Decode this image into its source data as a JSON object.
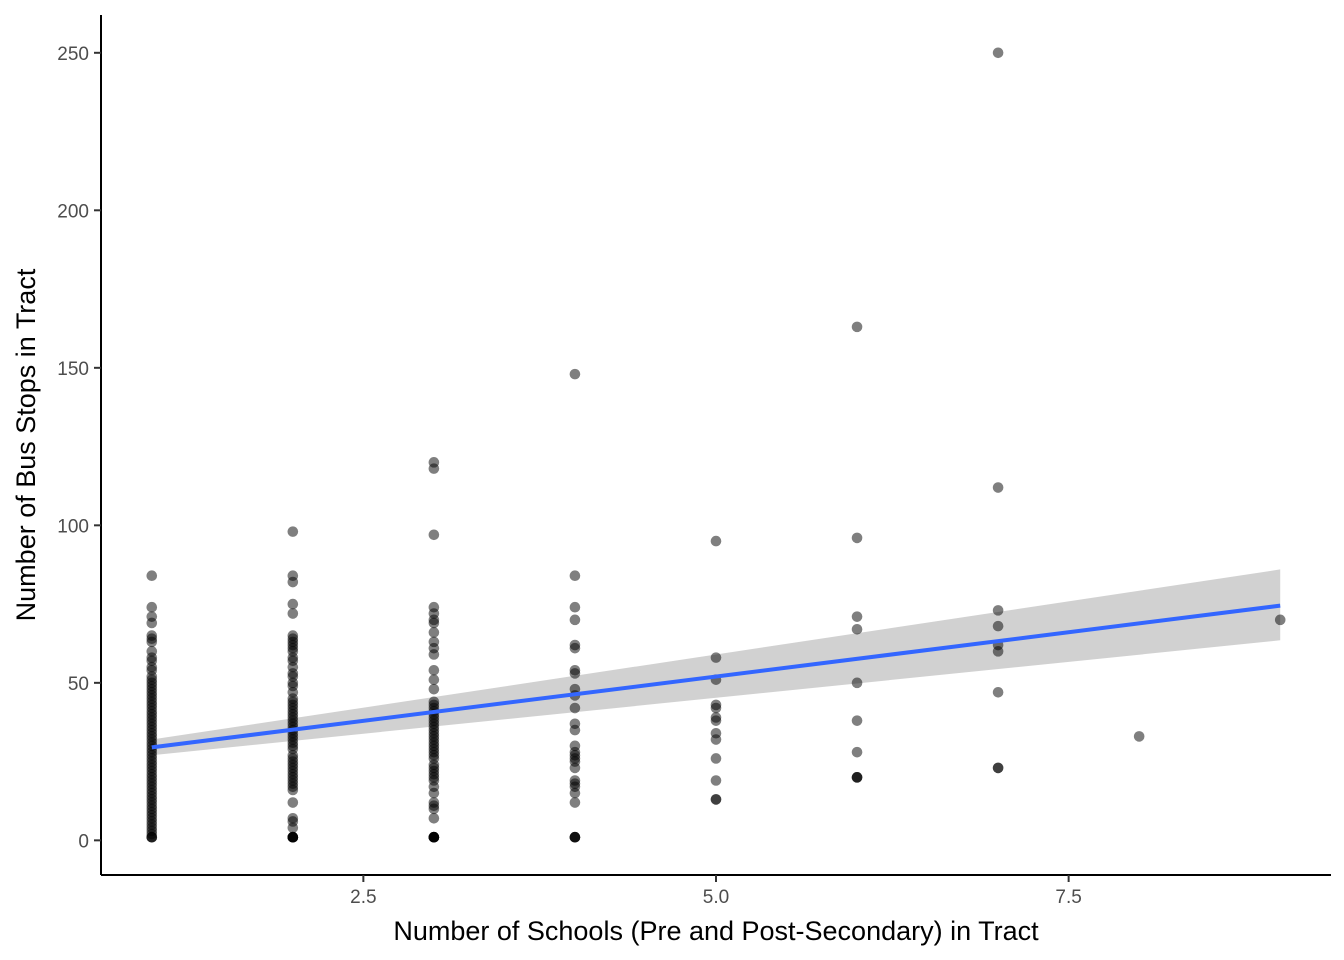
{
  "chart_data": {
    "type": "scatter",
    "title": "",
    "xlabel": "Number of Schools (Pre and Post-Secondary) in Tract",
    "ylabel": "Number of Bus Stops in Tract",
    "xlim": [
      0.64,
      9.36
    ],
    "ylim": [
      -11,
      262
    ],
    "x_ticks": [
      2.5,
      5.0,
      7.5
    ],
    "x_tick_labels": [
      "2.5",
      "5.0",
      "7.5"
    ],
    "y_ticks": [
      0,
      50,
      100,
      150,
      200,
      250
    ],
    "y_tick_labels": [
      "0",
      "50",
      "100",
      "150",
      "200",
      "250"
    ],
    "grid": false,
    "legend": "none",
    "colors": {
      "points": "#000000",
      "fit_line": "#3366FF",
      "ribbon": "#999999"
    },
    "points": {
      "x": [
        1,
        1,
        1,
        1,
        1,
        1,
        1,
        1,
        1,
        1,
        1,
        1,
        1,
        1,
        1,
        1,
        1,
        1,
        1,
        1,
        1,
        1,
        1,
        1,
        1,
        1,
        1,
        1,
        1,
        1,
        1,
        1,
        1,
        1,
        1,
        1,
        1,
        1,
        1,
        1,
        1,
        1,
        1,
        1,
        1,
        1,
        1,
        1,
        1,
        1,
        1,
        1,
        1,
        1,
        1,
        1,
        1,
        1,
        1,
        1,
        1,
        1,
        1,
        1,
        1,
        1,
        2,
        2,
        2,
        2,
        2,
        2,
        2,
        2,
        2,
        2,
        2,
        2,
        2,
        2,
        2,
        2,
        2,
        2,
        2,
        2,
        2,
        2,
        2,
        2,
        2,
        2,
        2,
        2,
        2,
        2,
        2,
        2,
        2,
        2,
        2,
        2,
        2,
        2,
        2,
        2,
        2,
        2,
        2,
        2,
        2,
        2,
        2,
        2,
        2,
        2,
        2,
        2,
        2,
        2,
        2,
        2,
        2,
        2,
        3,
        3,
        3,
        3,
        3,
        3,
        3,
        3,
        3,
        3,
        3,
        3,
        3,
        3,
        3,
        3,
        3,
        3,
        3,
        3,
        3,
        3,
        3,
        3,
        3,
        3,
        3,
        3,
        3,
        3,
        3,
        3,
        3,
        3,
        3,
        3,
        3,
        3,
        3,
        3,
        3,
        3,
        3,
        3,
        3,
        3,
        3,
        3,
        3,
        3,
        3,
        4,
        4,
        4,
        4,
        4,
        4,
        4,
        4,
        4,
        4,
        4,
        4,
        4,
        4,
        4,
        4,
        4,
        4,
        4,
        4,
        4,
        4,
        4,
        4,
        4,
        4,
        4,
        4,
        5,
        5,
        5,
        5,
        5,
        5,
        5,
        5,
        5,
        5,
        5,
        5,
        5,
        6,
        6,
        6,
        6,
        6,
        6,
        6,
        6,
        6,
        6,
        7,
        7,
        7,
        7,
        7,
        7,
        7,
        7,
        7,
        8,
        9
      ],
      "y": [
        84,
        74,
        71,
        69,
        65,
        64,
        63,
        60,
        58,
        57,
        55,
        54,
        52,
        51,
        50,
        49,
        48,
        47,
        46,
        45,
        44,
        43,
        42,
        41,
        40,
        39,
        38,
        37,
        36,
        35,
        34,
        33,
        32,
        31,
        30,
        29,
        28,
        27,
        26,
        25,
        24,
        23,
        22,
        21,
        20,
        19,
        18,
        17,
        16,
        15,
        14,
        13,
        12,
        11,
        10,
        9,
        8,
        7,
        6,
        5,
        4,
        3,
        2,
        1,
        1,
        1,
        98,
        84,
        82,
        75,
        72,
        65,
        64,
        63,
        62,
        61,
        60,
        58,
        57,
        55,
        53,
        52,
        50,
        49,
        47,
        45,
        44,
        43,
        42,
        41,
        40,
        39,
        38,
        37,
        36,
        35,
        34,
        33,
        32,
        31,
        30,
        29,
        27,
        26,
        25,
        24,
        23,
        22,
        21,
        20,
        19,
        18,
        17,
        16,
        12,
        7,
        6,
        4,
        1,
        1,
        1,
        1,
        1,
        1,
        120,
        118,
        97,
        74,
        72,
        70,
        69,
        66,
        63,
        61,
        59,
        54,
        51,
        48,
        44,
        43,
        42,
        41,
        40,
        39,
        38,
        37,
        36,
        35,
        34,
        33,
        32,
        31,
        30,
        29,
        28,
        27,
        26,
        24,
        23,
        22,
        21,
        20,
        19,
        17,
        15,
        12,
        11,
        10,
        7,
        1,
        1,
        1,
        1,
        1,
        1,
        148,
        84,
        74,
        70,
        62,
        61,
        54,
        53,
        48,
        46,
        42,
        37,
        35,
        30,
        28,
        27,
        26,
        25,
        23,
        19,
        18,
        17,
        15,
        12,
        1,
        1,
        1,
        1,
        95,
        58,
        51,
        43,
        42,
        39,
        38,
        34,
        32,
        26,
        19,
        13,
        13,
        163,
        96,
        71,
        67,
        50,
        38,
        28,
        20,
        20,
        20,
        250,
        112,
        73,
        68,
        62,
        60,
        47,
        23,
        23,
        33,
        70
      ]
    },
    "fit_line": {
      "x": [
        1,
        9
      ],
      "y": [
        29.5,
        74.5
      ]
    },
    "confidence_band": {
      "x": [
        1,
        9
      ],
      "lower": [
        27,
        63.5
      ],
      "upper": [
        32,
        86
      ]
    }
  }
}
